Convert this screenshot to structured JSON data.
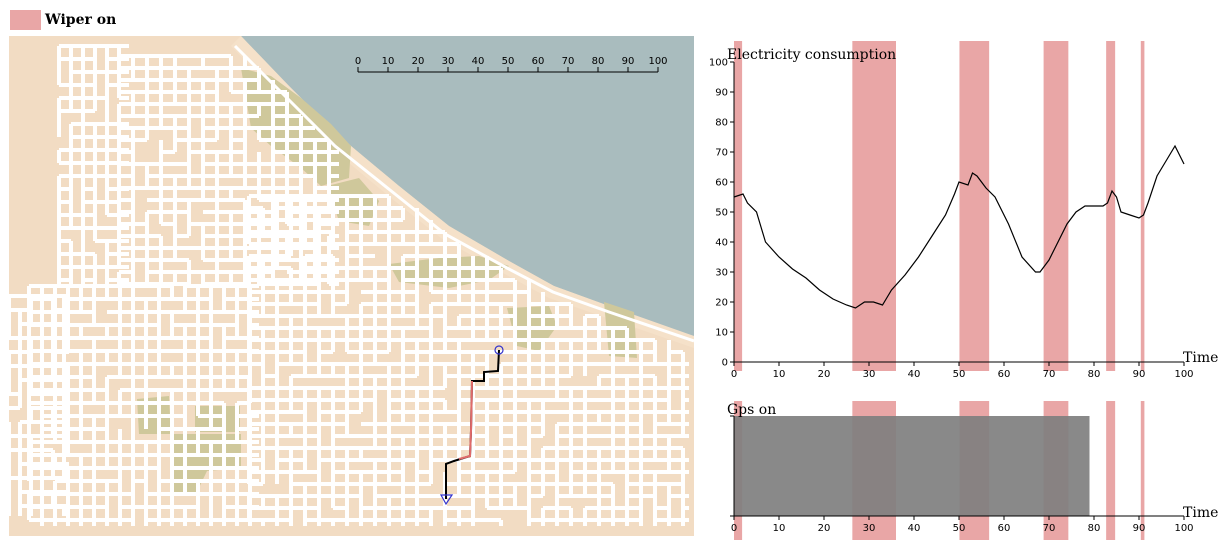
{
  "legend": {
    "label": "Wiper on",
    "color": "#e9a6a6"
  },
  "map": {
    "scale_ticks": [
      0,
      10,
      20,
      30,
      40,
      50,
      60,
      70,
      80,
      90,
      100
    ],
    "colors": {
      "land": "#f2dcc3",
      "water": "#a9bcbe",
      "park": "#cfc89b",
      "road": "#ffffff",
      "route": "#000000",
      "route_wiper": "#e06a6a",
      "marker": "#3333cc"
    },
    "icons": {
      "start": "circle-icon",
      "end": "triangle-icon"
    }
  },
  "chart_data": [
    {
      "type": "line",
      "title": "Electricity consumption",
      "xlabel": "Time",
      "ylabel": "",
      "xlim": [
        0,
        100
      ],
      "ylim": [
        0,
        100
      ],
      "x_ticks": [
        0,
        10,
        20,
        30,
        40,
        50,
        60,
        70,
        80,
        90,
        100
      ],
      "y_ticks": [
        0,
        10,
        20,
        30,
        40,
        50,
        60,
        70,
        80,
        90,
        100
      ],
      "line_color": "#000000",
      "x": [
        0,
        2,
        3,
        5,
        7,
        10,
        13,
        16,
        19,
        22,
        25,
        27,
        29,
        31,
        33,
        35,
        38,
        41,
        44,
        47,
        49,
        50,
        52,
        53,
        54,
        56,
        58,
        61,
        64,
        67,
        68,
        70,
        72,
        74,
        76,
        78,
        80,
        82,
        83,
        84,
        85,
        86,
        88,
        90,
        91,
        92,
        94,
        96,
        98,
        100
      ],
      "values": [
        55,
        56,
        53,
        50,
        40,
        35,
        31,
        28,
        24,
        21,
        19,
        18,
        20,
        20,
        19,
        24,
        29,
        35,
        42,
        49,
        56,
        60,
        59,
        63,
        62,
        58,
        55,
        46,
        35,
        30,
        30,
        34,
        40,
        46,
        50,
        52,
        52,
        52,
        53,
        57,
        55,
        50,
        49,
        48,
        49,
        53,
        62,
        67,
        72,
        66
      ]
    },
    {
      "type": "area",
      "title": "Gps on",
      "xlabel": "Time",
      "xlim": [
        0,
        100
      ],
      "x_ticks": [
        0,
        10,
        20,
        30,
        40,
        50,
        60,
        70,
        80,
        90,
        100
      ],
      "gps_on_interval": [
        0,
        79
      ],
      "fill_color": "#7f7f7f"
    }
  ],
  "wiper_intervals": [
    [
      0,
      1.8
    ],
    [
      26.3,
      36
    ],
    [
      50.1,
      56.7
    ],
    [
      68.8,
      74.3
    ],
    [
      82.7,
      84.7
    ],
    [
      90.4,
      91.2
    ]
  ]
}
